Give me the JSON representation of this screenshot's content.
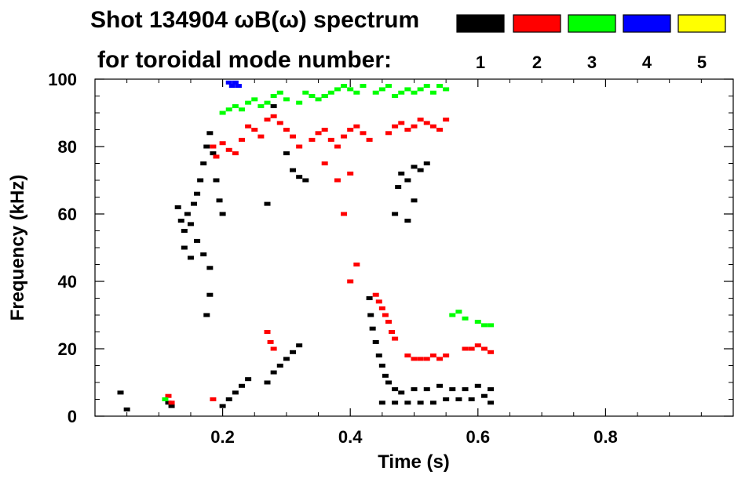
{
  "chart_data": {
    "type": "scatter",
    "title_line1": "Shot 134904 ωB(ω) spectrum",
    "title_line2": "for toroidal mode number:",
    "xlabel": "Time (s)",
    "ylabel": "Frequency (kHz)",
    "xlim": [
      0.0,
      1.0
    ],
    "ylim": [
      0,
      100
    ],
    "x_ticks": [
      0.2,
      0.4,
      0.6,
      0.8
    ],
    "x_tick_labels": [
      "0.2",
      "0.4",
      "0.6",
      "0.8"
    ],
    "y_ticks": [
      0,
      20,
      40,
      60,
      80,
      100
    ],
    "y_tick_labels": [
      "0",
      "20",
      "40",
      "60",
      "80",
      "100"
    ],
    "legend": [
      {
        "label": "1",
        "color": "#000000"
      },
      {
        "label": "2",
        "color": "#ff0000"
      },
      {
        "label": "3",
        "color": "#00ff00"
      },
      {
        "label": "4",
        "color": "#0000ff"
      },
      {
        "label": "5",
        "color": "#ffff00"
      }
    ],
    "series": [
      {
        "name": "1",
        "color": "#000000",
        "points": [
          [
            0.13,
            62
          ],
          [
            0.135,
            58
          ],
          [
            0.14,
            55
          ],
          [
            0.145,
            60
          ],
          [
            0.15,
            57
          ],
          [
            0.155,
            63
          ],
          [
            0.16,
            66
          ],
          [
            0.165,
            70
          ],
          [
            0.17,
            75
          ],
          [
            0.175,
            80
          ],
          [
            0.18,
            84
          ],
          [
            0.185,
            78
          ],
          [
            0.19,
            70
          ],
          [
            0.195,
            64
          ],
          [
            0.2,
            60
          ],
          [
            0.14,
            50
          ],
          [
            0.15,
            47
          ],
          [
            0.16,
            52
          ],
          [
            0.17,
            48
          ],
          [
            0.18,
            44
          ],
          [
            0.18,
            36
          ],
          [
            0.175,
            30
          ],
          [
            0.05,
            2
          ],
          [
            0.04,
            7
          ],
          [
            0.12,
            3
          ],
          [
            0.115,
            4
          ],
          [
            0.2,
            3
          ],
          [
            0.21,
            5
          ],
          [
            0.22,
            7
          ],
          [
            0.23,
            9
          ],
          [
            0.24,
            11
          ],
          [
            0.27,
            10
          ],
          [
            0.28,
            13
          ],
          [
            0.29,
            15
          ],
          [
            0.3,
            17
          ],
          [
            0.31,
            19
          ],
          [
            0.32,
            21
          ],
          [
            0.27,
            63
          ],
          [
            0.3,
            78
          ],
          [
            0.31,
            73
          ],
          [
            0.32,
            71
          ],
          [
            0.33,
            70
          ],
          [
            0.36,
            95
          ],
          [
            0.28,
            92
          ],
          [
            0.43,
            35
          ],
          [
            0.432,
            30
          ],
          [
            0.435,
            26
          ],
          [
            0.44,
            22
          ],
          [
            0.445,
            18
          ],
          [
            0.45,
            15
          ],
          [
            0.455,
            12
          ],
          [
            0.46,
            10
          ],
          [
            0.47,
            8
          ],
          [
            0.48,
            7
          ],
          [
            0.5,
            8
          ],
          [
            0.52,
            8
          ],
          [
            0.54,
            9
          ],
          [
            0.56,
            8
          ],
          [
            0.58,
            8
          ],
          [
            0.6,
            9
          ],
          [
            0.62,
            8
          ],
          [
            0.45,
            4
          ],
          [
            0.47,
            4
          ],
          [
            0.49,
            4
          ],
          [
            0.51,
            4
          ],
          [
            0.53,
            4
          ],
          [
            0.55,
            5
          ],
          [
            0.57,
            5
          ],
          [
            0.59,
            5
          ],
          [
            0.61,
            6
          ],
          [
            0.62,
            4
          ],
          [
            0.47,
            60
          ],
          [
            0.475,
            68
          ],
          [
            0.48,
            72
          ],
          [
            0.49,
            70
          ],
          [
            0.5,
            74
          ],
          [
            0.51,
            73
          ],
          [
            0.52,
            75
          ],
          [
            0.5,
            64
          ],
          [
            0.49,
            58
          ]
        ]
      },
      {
        "name": "2",
        "color": "#ff0000",
        "points": [
          [
            0.115,
            6
          ],
          [
            0.12,
            4
          ],
          [
            0.185,
            5
          ],
          [
            0.185,
            80
          ],
          [
            0.19,
            77
          ],
          [
            0.2,
            81
          ],
          [
            0.21,
            79
          ],
          [
            0.22,
            78
          ],
          [
            0.23,
            82
          ],
          [
            0.24,
            86
          ],
          [
            0.25,
            85
          ],
          [
            0.26,
            83
          ],
          [
            0.27,
            88
          ],
          [
            0.28,
            89
          ],
          [
            0.29,
            87
          ],
          [
            0.3,
            85
          ],
          [
            0.31,
            83
          ],
          [
            0.32,
            80
          ],
          [
            0.34,
            82
          ],
          [
            0.35,
            84
          ],
          [
            0.36,
            85
          ],
          [
            0.37,
            82
          ],
          [
            0.38,
            80
          ],
          [
            0.39,
            83
          ],
          [
            0.4,
            85
          ],
          [
            0.41,
            86
          ],
          [
            0.42,
            84
          ],
          [
            0.43,
            82
          ],
          [
            0.36,
            75
          ],
          [
            0.38,
            70
          ],
          [
            0.4,
            72
          ],
          [
            0.39,
            60
          ],
          [
            0.41,
            45
          ],
          [
            0.4,
            40
          ],
          [
            0.46,
            84
          ],
          [
            0.47,
            86
          ],
          [
            0.48,
            87
          ],
          [
            0.49,
            85
          ],
          [
            0.5,
            86
          ],
          [
            0.51,
            88
          ],
          [
            0.52,
            87
          ],
          [
            0.53,
            86
          ],
          [
            0.54,
            85
          ],
          [
            0.55,
            88
          ],
          [
            0.44,
            36
          ],
          [
            0.445,
            34
          ],
          [
            0.45,
            32
          ],
          [
            0.455,
            30
          ],
          [
            0.46,
            28
          ],
          [
            0.465,
            25
          ],
          [
            0.47,
            23
          ],
          [
            0.27,
            25
          ],
          [
            0.275,
            22
          ],
          [
            0.28,
            20
          ],
          [
            0.49,
            18
          ],
          [
            0.5,
            17
          ],
          [
            0.51,
            17
          ],
          [
            0.52,
            17
          ],
          [
            0.53,
            18
          ],
          [
            0.54,
            17
          ],
          [
            0.55,
            18
          ],
          [
            0.58,
            20
          ],
          [
            0.59,
            20
          ],
          [
            0.6,
            21
          ],
          [
            0.61,
            20
          ],
          [
            0.62,
            19
          ]
        ]
      },
      {
        "name": "3",
        "color": "#00ff00",
        "points": [
          [
            0.2,
            90
          ],
          [
            0.21,
            91
          ],
          [
            0.22,
            92
          ],
          [
            0.23,
            91
          ],
          [
            0.24,
            93
          ],
          [
            0.25,
            94
          ],
          [
            0.26,
            92
          ],
          [
            0.27,
            93
          ],
          [
            0.28,
            95
          ],
          [
            0.29,
            96
          ],
          [
            0.3,
            94
          ],
          [
            0.32,
            93
          ],
          [
            0.33,
            96
          ],
          [
            0.34,
            95
          ],
          [
            0.35,
            94
          ],
          [
            0.36,
            95
          ],
          [
            0.37,
            96
          ],
          [
            0.38,
            97
          ],
          [
            0.39,
            98
          ],
          [
            0.4,
            97
          ],
          [
            0.41,
            96
          ],
          [
            0.42,
            98
          ],
          [
            0.44,
            96
          ],
          [
            0.45,
            97
          ],
          [
            0.46,
            98
          ],
          [
            0.47,
            95
          ],
          [
            0.48,
            96
          ],
          [
            0.49,
            97
          ],
          [
            0.5,
            96
          ],
          [
            0.51,
            97
          ],
          [
            0.52,
            98
          ],
          [
            0.53,
            96
          ],
          [
            0.54,
            98
          ],
          [
            0.55,
            97
          ],
          [
            0.56,
            30
          ],
          [
            0.57,
            31
          ],
          [
            0.58,
            29
          ],
          [
            0.6,
            28
          ],
          [
            0.61,
            27
          ],
          [
            0.62,
            27
          ],
          [
            0.11,
            5
          ]
        ]
      },
      {
        "name": "4",
        "color": "#0000ff",
        "points": [
          [
            0.21,
            99
          ],
          [
            0.215,
            98
          ],
          [
            0.22,
            99
          ],
          [
            0.225,
            98
          ]
        ]
      },
      {
        "name": "5",
        "color": "#ffff00",
        "points": []
      }
    ]
  }
}
